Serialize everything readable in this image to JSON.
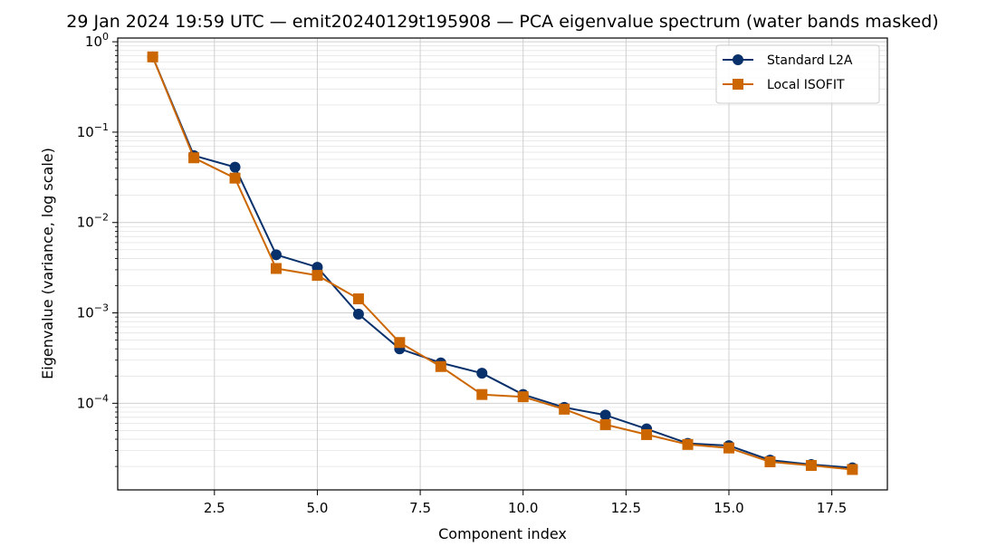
{
  "chart_data": {
    "type": "line",
    "title": "29 Jan 2024 19:59 UTC — emit20240129t195908 — PCA eigenvalue spectrum (water bands masked)",
    "xlabel": "Component index",
    "ylabel": "Eigenvalue (variance, log scale)",
    "x": [
      1,
      2,
      3,
      4,
      5,
      6,
      7,
      8,
      9,
      10,
      11,
      12,
      13,
      14,
      15,
      16,
      17,
      18
    ],
    "xlim": [
      0.15,
      18.85
    ],
    "ylim": [
      1.1e-05,
      1.1
    ],
    "yscale": "log",
    "grid": true,
    "legend_position": "top-right",
    "x_ticks": [
      {
        "value": 2.5,
        "label": "2.5"
      },
      {
        "value": 5.0,
        "label": "5.0"
      },
      {
        "value": 7.5,
        "label": "7.5"
      },
      {
        "value": 10.0,
        "label": "10.0"
      },
      {
        "value": 12.5,
        "label": "12.5"
      },
      {
        "value": 15.0,
        "label": "15.0"
      },
      {
        "value": 17.5,
        "label": "17.5"
      }
    ],
    "y_ticks": [
      {
        "exp": 0,
        "base": "10",
        "sup": "0"
      },
      {
        "exp": -1,
        "base": "10",
        "sup": "−1"
      },
      {
        "exp": -2,
        "base": "10",
        "sup": "−2"
      },
      {
        "exp": -3,
        "base": "10",
        "sup": "−3"
      },
      {
        "exp": -4,
        "base": "10",
        "sup": "−4"
      }
    ],
    "series": [
      {
        "name": "Standard L2A",
        "color": "#08306b",
        "marker": "circle",
        "values": [
          0.68,
          0.055,
          0.041,
          0.0044,
          0.0032,
          0.00097,
          0.0004,
          0.00028,
          0.000215,
          0.000125,
          9e-05,
          7.4e-05,
          5.2e-05,
          3.6e-05,
          3.4e-05,
          2.35e-05,
          2.1e-05,
          1.93e-05
        ]
      },
      {
        "name": "Local ISOFIT",
        "color": "#cc6600",
        "marker": "square",
        "values": [
          0.68,
          0.052,
          0.031,
          0.0031,
          0.0026,
          0.00143,
          0.00047,
          0.000255,
          0.000125,
          0.000118,
          8.6e-05,
          5.8e-05,
          4.5e-05,
          3.5e-05,
          3.2e-05,
          2.25e-05,
          2.05e-05,
          1.85e-05
        ]
      }
    ]
  }
}
